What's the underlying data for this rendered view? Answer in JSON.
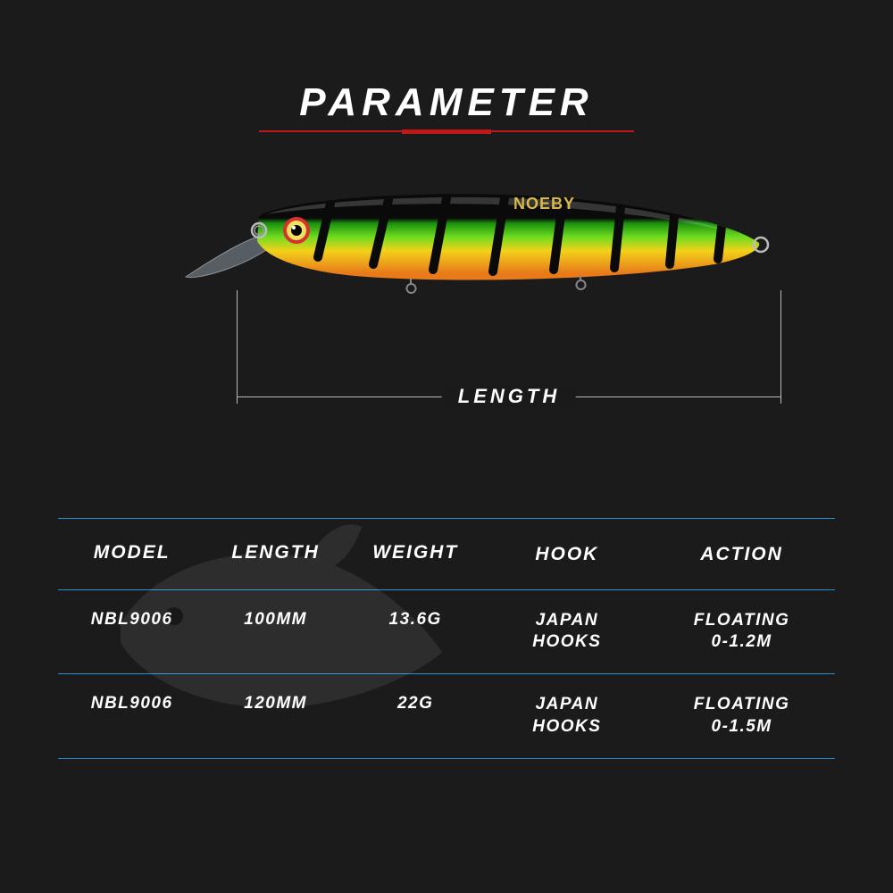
{
  "title": "PARAMETER",
  "lure": {
    "brand": "NOEBY",
    "colors": {
      "top": "#0a0a0a",
      "mid_light": "#6edc1f",
      "mid_dark": "#1a8f0f",
      "belly_top": "#f2d21a",
      "belly_bot": "#e87a1a",
      "stripe": "#0a0a0a",
      "eye_ring": "#d93030",
      "eye_iris": "#f0e060",
      "lip": "rgba(200,220,235,0.35)"
    }
  },
  "measure_label": "LENGTH",
  "table": {
    "columns": [
      "MODEL",
      "LENGTH",
      "WEIGHT",
      "HOOK",
      "ACTION"
    ],
    "rows": [
      {
        "model": "NBL9006",
        "length": "100MM",
        "weight": "13.6G",
        "hook": "JAPAN\nHOOKS",
        "action": "FLOATING\n0-1.2M"
      },
      {
        "model": "NBL9006",
        "length": "120MM",
        "weight": "22G",
        "hook": "JAPAN\nHOOKS",
        "action": "FLOATING\n0-1.5M"
      }
    ],
    "border_color": "#2a8fd6",
    "header_fontsize": 21,
    "cell_fontsize": 19
  },
  "background": "#1a1a1a"
}
